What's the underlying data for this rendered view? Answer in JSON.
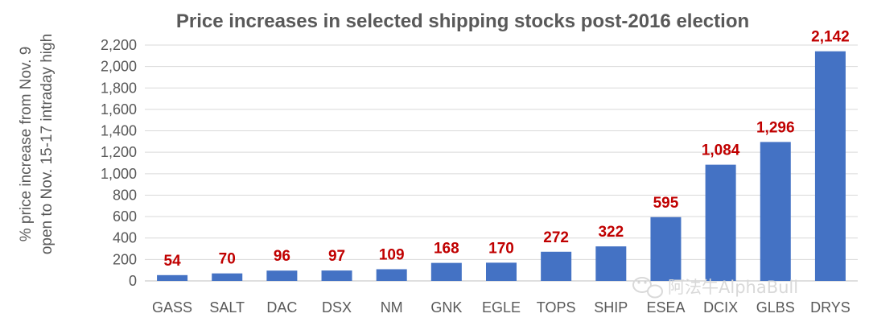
{
  "chart_data": {
    "type": "bar",
    "title": "Price increases in selected shipping stocks post-2016 election",
    "ylabel_lines": [
      "% price increase from Nov. 9",
      "open to Nov. 15-17 intraday high"
    ],
    "xlabel": "",
    "categories": [
      "GASS",
      "SALT",
      "DAC",
      "DSX",
      "NM",
      "GNK",
      "EGLE",
      "TOPS",
      "SHIP",
      "ESEA",
      "DCIX",
      "GLBS",
      "DRYS"
    ],
    "values": [
      54,
      70,
      96,
      97,
      109,
      168,
      170,
      272,
      322,
      595,
      1084,
      1296,
      2142
    ],
    "data_labels": [
      "54",
      "70",
      "96",
      "97",
      "109",
      "168",
      "170",
      "272",
      "322",
      "595",
      "1,084",
      "1,296",
      "2,142"
    ],
    "ylim": [
      0,
      2200
    ],
    "yticks": [
      0,
      200,
      400,
      600,
      800,
      1000,
      1200,
      1400,
      1600,
      1800,
      2000,
      2200
    ],
    "ytick_labels": [
      "0",
      "200",
      "400",
      "600",
      "800",
      "1,000",
      "1,200",
      "1,400",
      "1,600",
      "1,800",
      "2,000",
      "2,200"
    ],
    "grid": true,
    "legend": "none",
    "colors": {
      "bar": "#4472c4",
      "data_label": "#c00000",
      "grid": "#d9d9d9",
      "text": "#595959"
    }
  },
  "watermark": {
    "icon": "wechat-icon",
    "text": "阿法牛AlphaBull"
  }
}
